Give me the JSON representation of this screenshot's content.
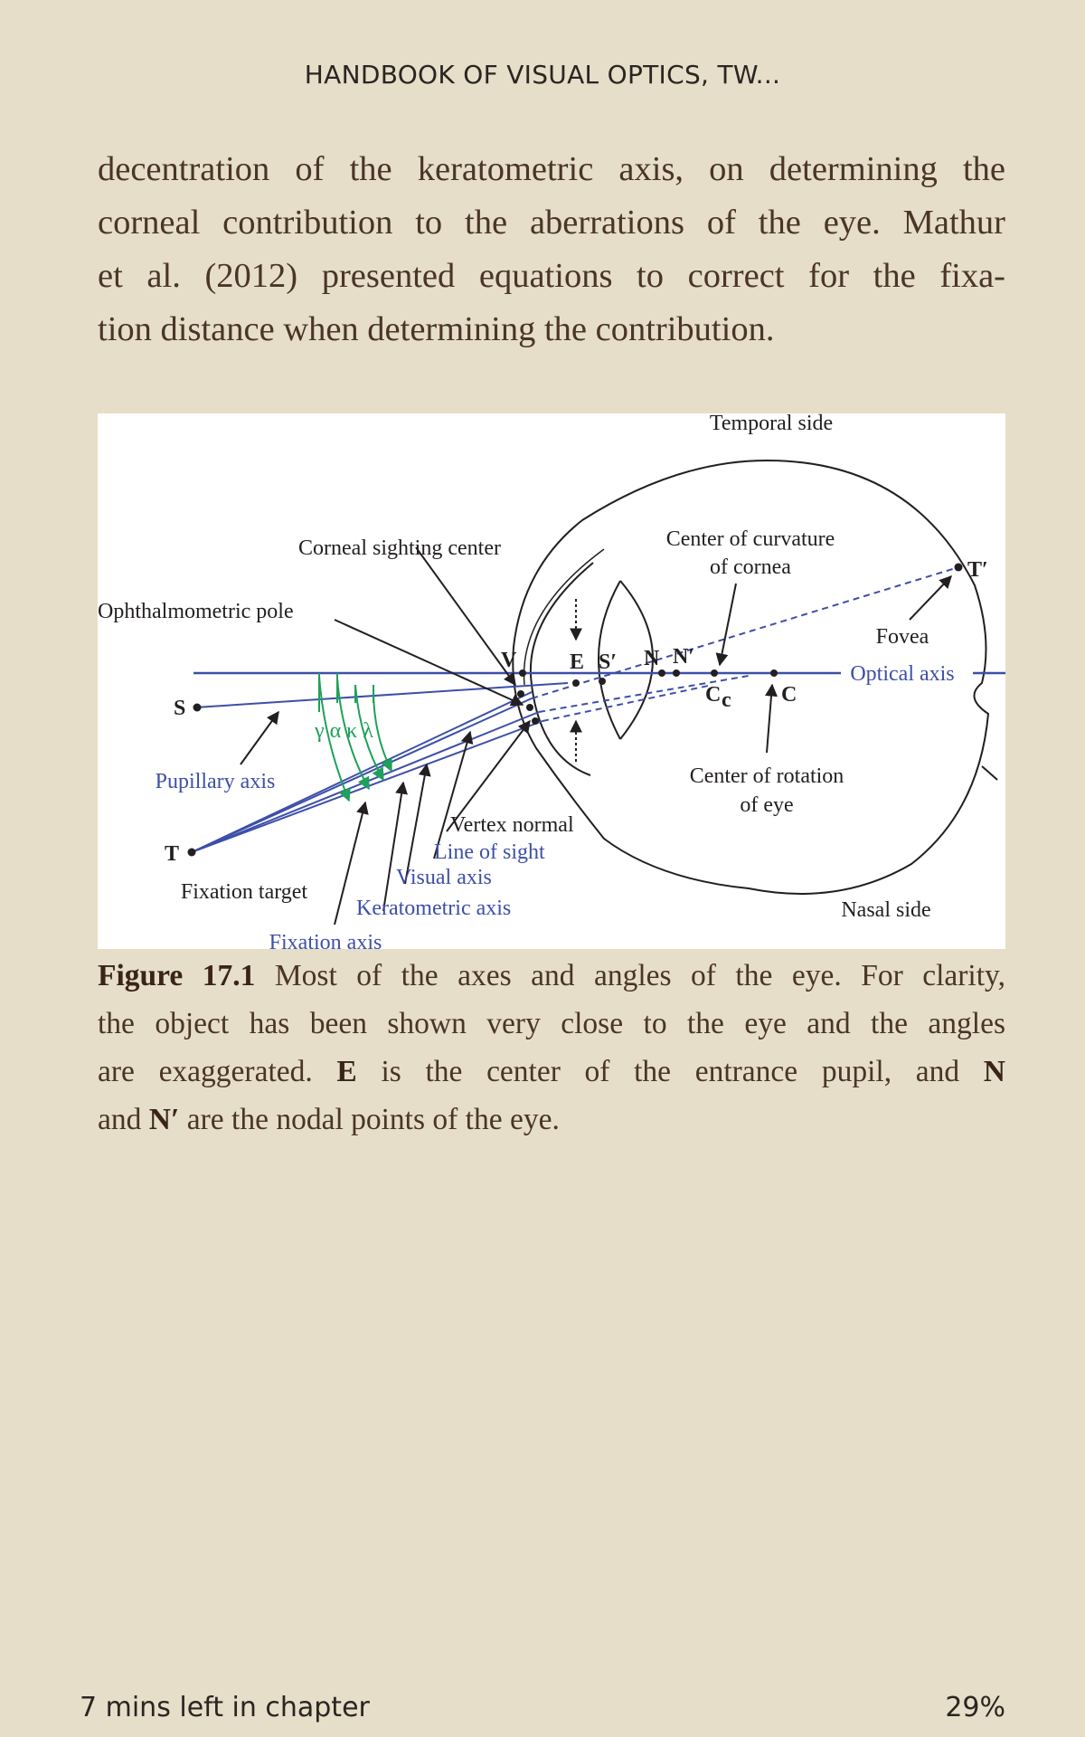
{
  "header": {
    "title": "HANDBOOK OF VISUAL OPTICS, TW..."
  },
  "body": {
    "lines": [
      "decentration of the keratometric axis, on determining the",
      "corneal contribution to the aberrations of the eye. Mathur",
      "et al. (2012) presented equations to correct for the fixa-",
      "tion distance when determining the contribution."
    ]
  },
  "figure": {
    "labels": {
      "temporal_side": "Temporal side",
      "nasal_side": "Nasal side",
      "corneal_sighting_center": "Corneal sighting center",
      "center_curvature_1": "Center of curvature",
      "center_curvature_2": "of cornea",
      "ophthalmometric_pole": "Ophthalmometric pole",
      "fovea": "Fovea",
      "optical_axis": "Optical axis",
      "center_rotation_1": "Center of rotation",
      "center_rotation_2": "of eye",
      "pupillary_axis": "Pupillary axis",
      "vertex_normal": "Vertex normal",
      "line_of_sight": "Line of sight",
      "visual_axis": "Visual axis",
      "keratometric_axis": "Keratometric axis",
      "fixation_axis": "Fixation axis",
      "fixation_target": "Fixation target",
      "greek": "γ α κ λ",
      "point_S": "S",
      "point_T": "T",
      "point_T_prime": "T′",
      "point_V": "V",
      "point_E": "E",
      "point_S_prime": "S′",
      "point_N": "N",
      "point_N_prime": "N′",
      "point_Cc": "C",
      "point_Cc_sub": "c",
      "point_C": "C"
    },
    "colors": {
      "blue": "#3d4fa8",
      "green": "#1ea05a",
      "black": "#231f20"
    }
  },
  "caption": {
    "figure_number": "Figure 17.1",
    "line1_rest": " Most of the axes and angles of the eye. For clarity,",
    "line2": "the object has been shown very close to the eye and the angles",
    "line3_a": "are exaggerated. ",
    "line3_E": "E",
    "line3_b": " is the center of the entrance pupil, and ",
    "line3_N": "N",
    "line4_a": "and ",
    "line4_Nprime": "N′",
    "line4_b": " are the nodal points of the eye."
  },
  "footer": {
    "time_left": "7 mins left in chapter",
    "progress": "29%"
  }
}
